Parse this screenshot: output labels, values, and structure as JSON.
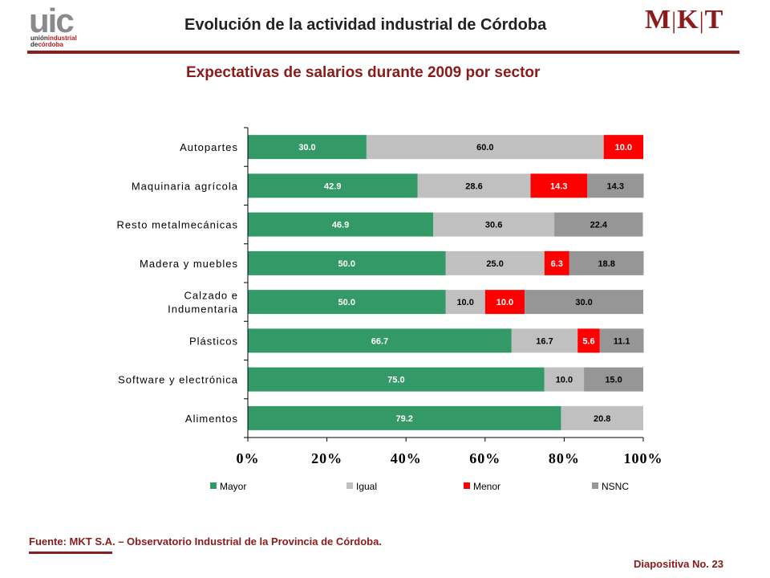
{
  "header": {
    "logo_left": {
      "main": "uic",
      "line1": "unión",
      "line1b": "industrial",
      "line2": "de",
      "line2b": "córdoba"
    },
    "title": "Evolución de la actividad industrial de Córdoba",
    "logo_right": {
      "m": "M",
      "k": "K",
      "t": "T",
      "sep": "|"
    }
  },
  "subtitle": "Expectativas de salarios durante 2009 por sector",
  "chart_data": {
    "type": "bar",
    "orientation": "horizontal",
    "stacked": "percent",
    "categories": [
      "Autopartes",
      "Maquinaria agrícola",
      "Resto metalmecánicas",
      "Madera y muebles",
      "Calzado e Indumentaria",
      "Plásticos",
      "Software y electrónica",
      "Alimentos"
    ],
    "series": [
      {
        "name": "Mayor",
        "color": "#339966",
        "label_color": "#ffffff",
        "values": [
          30.0,
          42.9,
          46.9,
          50.0,
          50.0,
          66.7,
          75.0,
          79.2
        ]
      },
      {
        "name": "Igual",
        "color": "#c0c0c0",
        "label_color": "#000000",
        "values": [
          60.0,
          28.6,
          30.6,
          25.0,
          10.0,
          16.7,
          10.0,
          20.8
        ]
      },
      {
        "name": "Menor",
        "color": "#ff0000",
        "label_color": "#ffffff",
        "values": [
          10.0,
          14.3,
          0,
          6.3,
          10.0,
          5.6,
          0,
          0
        ]
      },
      {
        "name": "NSNC",
        "color": "#969696",
        "label_color": "#000000",
        "values": [
          0,
          14.3,
          22.4,
          18.8,
          30.0,
          11.1,
          15.0,
          0
        ]
      }
    ],
    "xlim": [
      0,
      100
    ],
    "x_ticks": [
      "0%",
      "20%",
      "40%",
      "60%",
      "80%",
      "100%"
    ],
    "legend_position": "bottom",
    "grid": false
  },
  "footer": {
    "source": "Fuente: MKT S.A. – Observatorio Industrial de la Provincia de Córdoba.",
    "slide": "Diapositiva No. 23"
  }
}
